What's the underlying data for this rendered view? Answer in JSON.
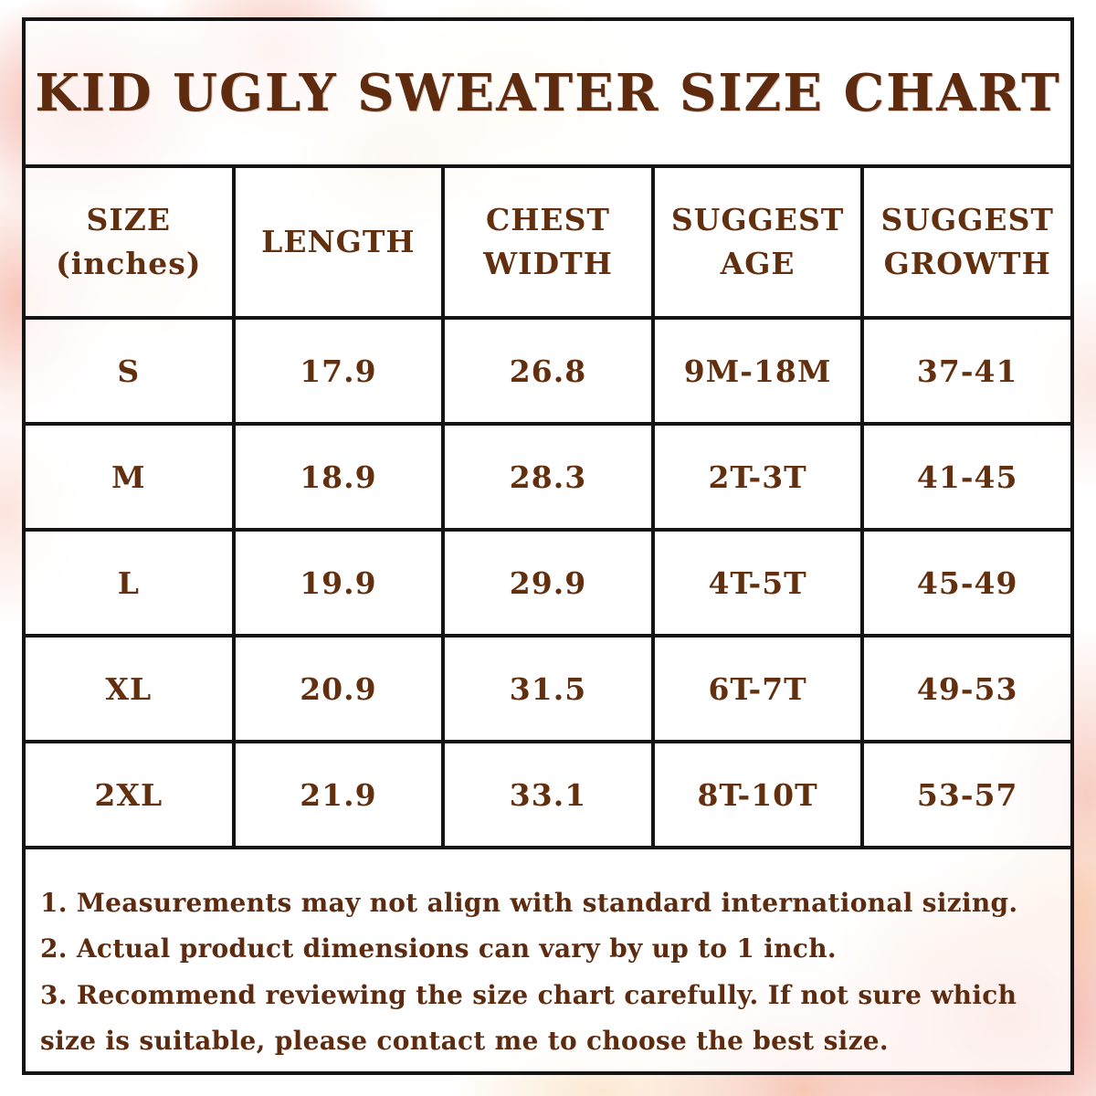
{
  "title": "KID UGLY SWEATER SIZE CHART",
  "colors": {
    "text_brown": "#5e2b0f",
    "border_black": "#141414",
    "watercolor_pink": "#f3a091",
    "watercolor_peach": "#f7c7a2",
    "watercolor_yellow": "#fbe7bc",
    "cell_background": "#ffffff"
  },
  "chart_data": {
    "type": "table",
    "title": "KID UGLY SWEATER SIZE CHART",
    "unit": "inches",
    "columns": [
      "SIZE (inches)",
      "LENGTH",
      "CHEST WIDTH",
      "SUGGEST AGE",
      "SUGGEST GROWTH"
    ],
    "columns_display": [
      "SIZE\n(inches)",
      "LENGTH",
      "CHEST\nWIDTH",
      "SUGGEST\nAGE",
      "SUGGEST\nGROWTH"
    ],
    "rows": [
      {
        "size": "S",
        "length": "17.9",
        "chest_width": "26.8",
        "suggest_age": "9M-18M",
        "suggest_growth": "37-41"
      },
      {
        "size": "M",
        "length": "18.9",
        "chest_width": "28.3",
        "suggest_age": "2T-3T",
        "suggest_growth": "41-45"
      },
      {
        "size": "L",
        "length": "19.9",
        "chest_width": "29.9",
        "suggest_age": "4T-5T",
        "suggest_growth": "45-49"
      },
      {
        "size": "XL",
        "length": "20.9",
        "chest_width": "31.5",
        "suggest_age": "6T-7T",
        "suggest_growth": "49-53"
      },
      {
        "size": "2XL",
        "length": "21.9",
        "chest_width": "33.1",
        "suggest_age": "8T-10T",
        "suggest_growth": "53-57"
      }
    ]
  },
  "notes": [
    "1. Measurements may not align with standard international sizing.",
    "2. Actual product dimensions can vary by up to 1 inch.",
    "3. Recommend reviewing the size chart carefully. If not sure which size is suitable, please contact me to choose the best size."
  ]
}
